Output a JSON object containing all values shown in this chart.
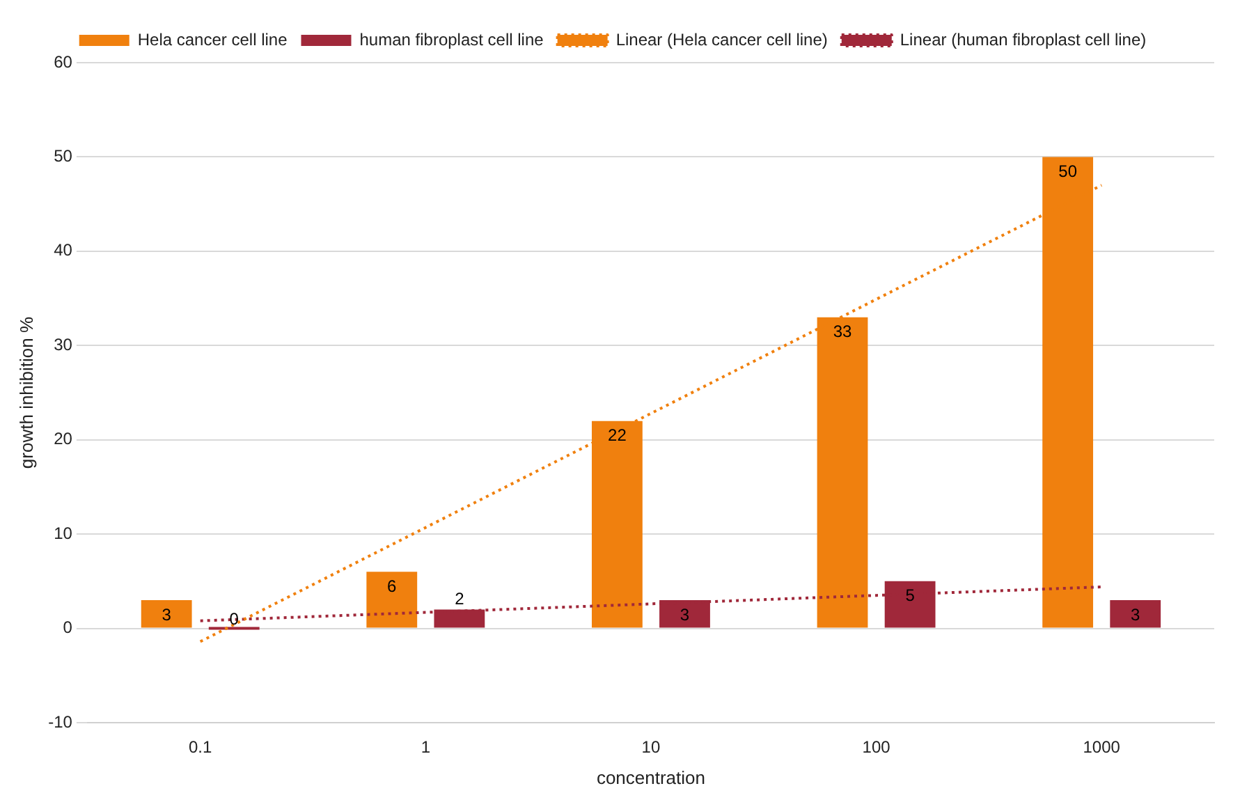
{
  "chart_data": {
    "type": "bar",
    "xlabel": "concentration",
    "ylabel": "growth inhibition %",
    "categories": [
      "0.1",
      "1",
      "10",
      "100",
      "1000"
    ],
    "series": [
      {
        "name": "Hela cancer cell line",
        "color": "#f0800e",
        "values": [
          3,
          6,
          22,
          33,
          50
        ],
        "value_labels": [
          "3",
          "6",
          "22",
          "33",
          "50"
        ]
      },
      {
        "name": "human fibroplast cell line",
        "color": "#a0283a",
        "values": [
          0,
          2,
          3,
          5,
          3
        ],
        "value_labels": [
          "0",
          "2",
          "3",
          "5",
          "3"
        ]
      },
      {
        "name": "Linear (Hela cancer cell line)",
        "type": "line",
        "color": "#f0800e",
        "line_style": "dotted",
        "values": [
          -1.4,
          10.7,
          22.8,
          34.9,
          47
        ]
      },
      {
        "name": "Linear (human fibroplast cell line)",
        "type": "line",
        "color": "#a0283a",
        "line_style": "dotted",
        "values": [
          0.8,
          1.7,
          2.6,
          3.5,
          4.4
        ]
      }
    ],
    "ylim": [
      -10,
      60
    ],
    "yticks": [
      -10,
      0,
      10,
      20,
      30,
      40,
      50,
      60
    ],
    "grid": "y",
    "legend": "top",
    "marker": "none"
  }
}
